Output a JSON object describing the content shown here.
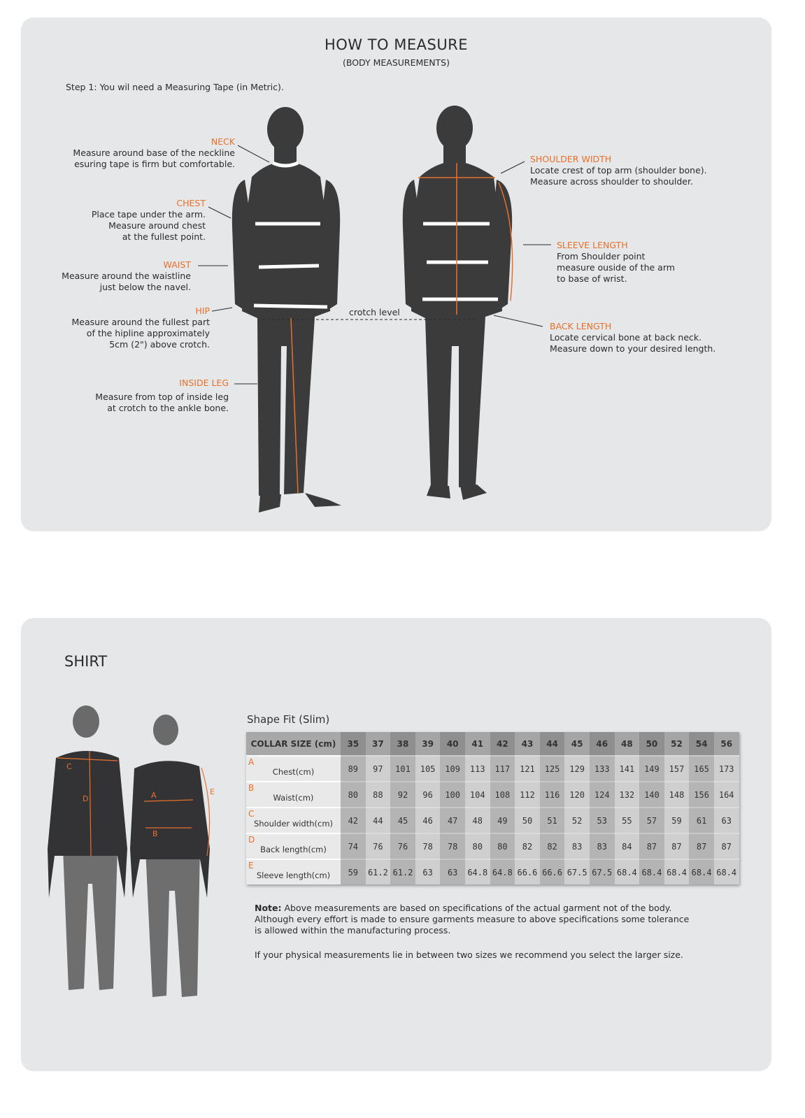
{
  "measure": {
    "title": "HOW TO MEASURE",
    "subtitle": "(BODY MEASUREMENTS)",
    "step": "Step 1: You wil need a Measuring Tape (in Metric).",
    "crotch_label": "crotch level",
    "accent_color": "#e8702a",
    "annotations": {
      "neck": {
        "label": "NECK",
        "lines": [
          "Measure around base of the neckline",
          "esuring tape is firm but comfortable."
        ]
      },
      "chest": {
        "label": "CHEST",
        "lines": [
          "Place tape under the arm.",
          "Measure around chest",
          "at the fullest point."
        ]
      },
      "waist": {
        "label": "WAIST",
        "lines": [
          "Measure around the waistline",
          "just below the navel."
        ]
      },
      "hip": {
        "label": "HIP",
        "lines": [
          "Measure around the fullest part",
          "of the hipline approximately",
          "5cm (2\") above crotch."
        ]
      },
      "inside_leg": {
        "label": "INSIDE LEG",
        "lines": [
          "Measure from top of inside leg",
          "at crotch to the ankle bone."
        ]
      },
      "shoulder_width": {
        "label": "SHOULDER WIDTH",
        "lines": [
          "Locate crest of top arm (shoulder bone).",
          "Measure across shoulder to shoulder."
        ]
      },
      "sleeve_length": {
        "label": "SLEEVE LENGTH",
        "lines": [
          "From Shoulder point",
          "measure ouside of the arm",
          "to base of wrist."
        ]
      },
      "back_length": {
        "label": "BACK LENGTH",
        "lines": [
          "Locate cervical bone at back neck.",
          "Measure down to your desired length."
        ]
      }
    }
  },
  "shirt": {
    "title": "SHIRT",
    "figure_labels": [
      "A",
      "B",
      "C",
      "D",
      "E"
    ],
    "table_title": "Shape Fit (Slim)",
    "header_label": "COLLAR SIZE (cm)",
    "sizes": [
      "35",
      "37",
      "38",
      "39",
      "40",
      "41",
      "42",
      "43",
      "44",
      "45",
      "46",
      "48",
      "50",
      "52",
      "54",
      "56"
    ],
    "rows": [
      {
        "letter": "A",
        "label": "Chest(cm)",
        "values": [
          "89",
          "97",
          "101",
          "105",
          "109",
          "113",
          "117",
          "121",
          "125",
          "129",
          "133",
          "141",
          "149",
          "157",
          "165",
          "173"
        ]
      },
      {
        "letter": "B",
        "label": "Waist(cm)",
        "values": [
          "80",
          "88",
          "92",
          "96",
          "100",
          "104",
          "108",
          "112",
          "116",
          "120",
          "124",
          "132",
          "140",
          "148",
          "156",
          "164"
        ]
      },
      {
        "letter": "C",
        "label": "Shoulder width(cm)",
        "values": [
          "42",
          "44",
          "45",
          "46",
          "47",
          "48",
          "49",
          "50",
          "51",
          "52",
          "53",
          "55",
          "57",
          "59",
          "61",
          "63"
        ]
      },
      {
        "letter": "D",
        "label": "Back length(cm)",
        "values": [
          "74",
          "76",
          "76",
          "78",
          "78",
          "80",
          "80",
          "82",
          "82",
          "83",
          "83",
          "84",
          "87",
          "87",
          "87",
          "87"
        ]
      },
      {
        "letter": "E",
        "label": "Sleeve length(cm)",
        "values": [
          "59",
          "61.2",
          "61.2",
          "63",
          "63",
          "64.8",
          "64.8",
          "66.6",
          "66.6",
          "67.5",
          "67.5",
          "68.4",
          "68.4",
          "68.4",
          "68.4",
          "68.4"
        ]
      }
    ],
    "note_bold": "Note:",
    "note_text": " Above measurements are based on specifications of the actual garment not of the body.",
    "note_lines": [
      "Although every effort is made to ensure garments measure to above specifications some tolerance",
      "is allowed within the manufacturing process."
    ],
    "recommendation": "If your physical measurements lie in between two sizes we recommend you select the larger size."
  }
}
